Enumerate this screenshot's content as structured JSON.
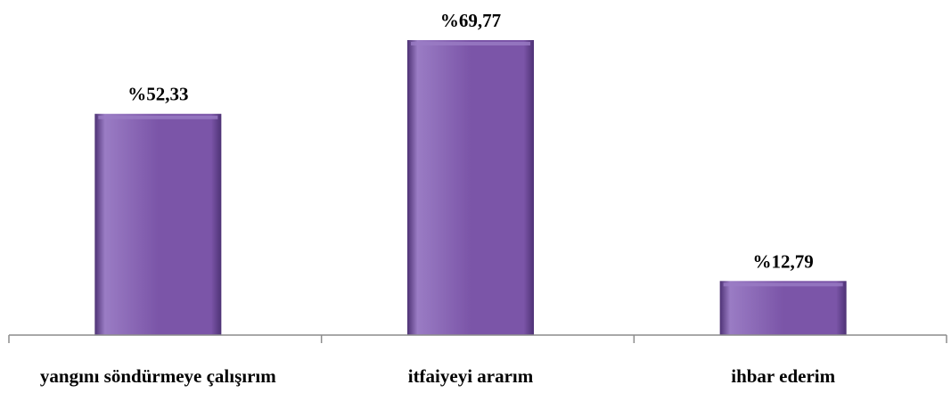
{
  "chart_data": {
    "type": "bar",
    "categories": [
      "yangını söndürmeye çalışırım",
      "itfaiyeyi ararım",
      "ihbar ederim"
    ],
    "values": [
      52.33,
      69.77,
      12.79
    ],
    "data_labels": [
      "%52,33",
      "%69,77",
      "%12,79"
    ],
    "title": "",
    "xlabel": "",
    "ylabel": "",
    "ylim": [
      0,
      78
    ],
    "grid": false,
    "legend": "none",
    "colors": {
      "bar_fill": "#7b55a8",
      "bar_light": "#9a7cc4",
      "bar_dark": "#4e3275",
      "axis": "#8c8c8c",
      "text": "#000000"
    }
  }
}
